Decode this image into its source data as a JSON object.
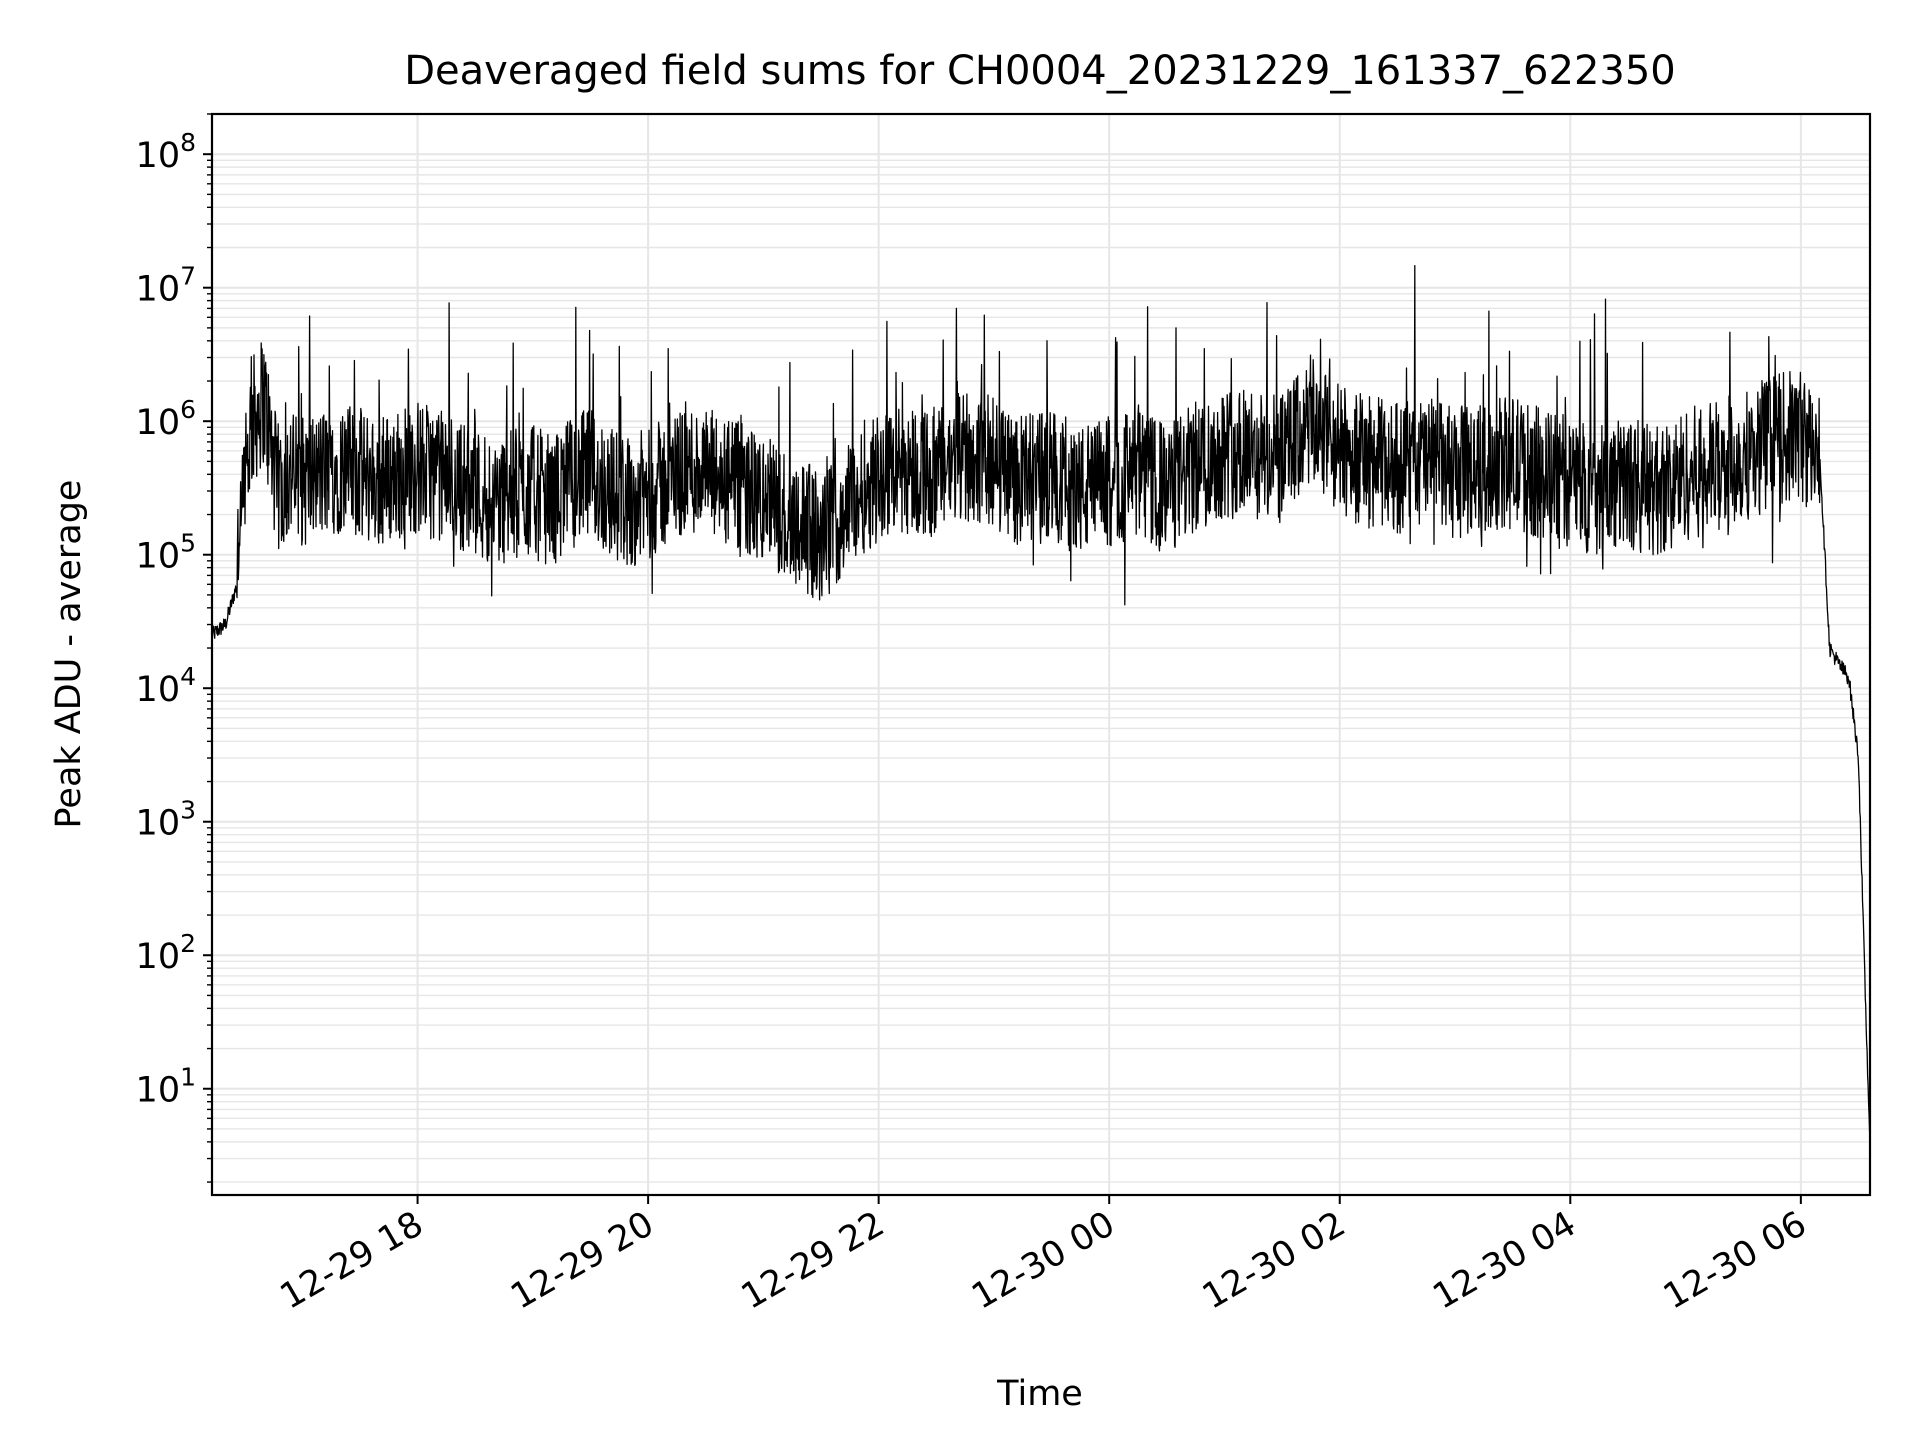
{
  "chart_data": {
    "type": "line",
    "title": "Deaveraged field sums for CH0004_20231229_161337_622350",
    "xlabel": "Time",
    "ylabel": "Peak ADU - average",
    "y_scale": "log",
    "xlim": [
      "2023-12-29 16:13",
      "2023-12-30 06:36"
    ],
    "ylim": [
      1.6,
      200000000
    ],
    "x_ticks": [
      "12-29 18",
      "12-29 20",
      "12-29 22",
      "12-30 00",
      "12-30 02",
      "12-30 04",
      "12-30 06"
    ],
    "x_tick_values": [
      "2023-12-29 18:00",
      "2023-12-29 20:00",
      "2023-12-29 22:00",
      "2023-12-30 00:00",
      "2023-12-30 02:00",
      "2023-12-30 04:00",
      "2023-12-30 06:00"
    ],
    "y_ticks": [
      {
        "base": "10",
        "exp": "1",
        "value": 10
      },
      {
        "base": "10",
        "exp": "2",
        "value": 100
      },
      {
        "base": "10",
        "exp": "3",
        "value": 1000
      },
      {
        "base": "10",
        "exp": "4",
        "value": 10000
      },
      {
        "base": "10",
        "exp": "5",
        "value": 100000
      },
      {
        "base": "10",
        "exp": "6",
        "value": 1000000
      },
      {
        "base": "10",
        "exp": "7",
        "value": 10000000
      },
      {
        "base": "10",
        "exp": "8",
        "value": 100000000
      }
    ],
    "grid": true,
    "line_color": "#000000",
    "grid_color": "#e6e6e6",
    "series": [
      {
        "x": [
          "2023-12-29 16:13",
          "2023-12-29 16:20",
          "2023-12-29 16:26",
          "2023-12-29 16:33",
          "2023-12-29 16:40",
          "2023-12-29 16:47",
          "2023-12-29 16:53",
          "2023-12-29 17:00",
          "2023-12-29 17:10",
          "2023-12-29 17:20",
          "2023-12-29 17:30",
          "2023-12-29 17:40",
          "2023-12-29 17:50",
          "2023-12-29 18:00",
          "2023-12-29 18:10",
          "2023-12-29 18:20",
          "2023-12-29 18:30",
          "2023-12-29 18:40",
          "2023-12-29 18:50",
          "2023-12-29 19:00",
          "2023-12-29 19:10",
          "2023-12-29 19:20",
          "2023-12-29 19:30",
          "2023-12-29 19:40",
          "2023-12-29 19:50",
          "2023-12-29 20:00",
          "2023-12-29 20:10",
          "2023-12-29 20:20",
          "2023-12-29 20:30",
          "2023-12-29 20:40",
          "2023-12-29 20:50",
          "2023-12-29 21:00",
          "2023-12-29 21:10",
          "2023-12-29 21:20",
          "2023-12-29 21:30",
          "2023-12-29 21:40",
          "2023-12-29 21:50",
          "2023-12-29 22:00",
          "2023-12-29 22:15",
          "2023-12-29 22:30",
          "2023-12-29 22:45",
          "2023-12-29 23:00",
          "2023-12-29 23:15",
          "2023-12-29 23:30",
          "2023-12-29 23:45",
          "2023-12-30 00:00",
          "2023-12-30 00:15",
          "2023-12-30 00:30",
          "2023-12-30 00:45",
          "2023-12-30 01:00",
          "2023-12-30 01:15",
          "2023-12-30 01:30",
          "2023-12-30 01:45",
          "2023-12-30 02:00",
          "2023-12-30 02:15",
          "2023-12-30 02:30",
          "2023-12-30 02:45",
          "2023-12-30 03:00",
          "2023-12-30 03:15",
          "2023-12-30 03:30",
          "2023-12-30 03:45",
          "2023-12-30 04:00",
          "2023-12-30 04:15",
          "2023-12-30 04:30",
          "2023-12-30 04:45",
          "2023-12-30 05:00",
          "2023-12-30 05:15",
          "2023-12-30 05:30",
          "2023-12-30 05:45",
          "2023-12-30 06:00",
          "2023-12-30 06:05",
          "2023-12-30 06:10",
          "2023-12-30 06:15",
          "2023-12-30 06:20",
          "2023-12-30 06:25",
          "2023-12-30 06:30",
          "2023-12-30 06:34",
          "2023-12-30 06:36"
        ],
        "y": [
          25000,
          30000,
          60000,
          900000,
          1500000,
          300000,
          400000,
          350000,
          400000,
          450000,
          400000,
          350000,
          400000,
          450000,
          400000,
          350000,
          300000,
          250000,
          280000,
          300000,
          250000,
          350000,
          400000,
          300000,
          250000,
          280000,
          350000,
          450000,
          400000,
          350000,
          300000,
          250000,
          200000,
          180000,
          120000,
          200000,
          300000,
          400000,
          450000,
          400000,
          550000,
          500000,
          350000,
          400000,
          300000,
          350000,
          400000,
          300000,
          450000,
          600000,
          550000,
          500000,
          1000000,
          600000,
          500000,
          450000,
          500000,
          400000,
          450000,
          500000,
          400000,
          350000,
          300000,
          350000,
          300000,
          400000,
          450000,
          550000,
          700000,
          800000,
          600000,
          500000,
          20000,
          15000,
          12000,
          3000,
          30,
          4
        ]
      }
    ]
  }
}
